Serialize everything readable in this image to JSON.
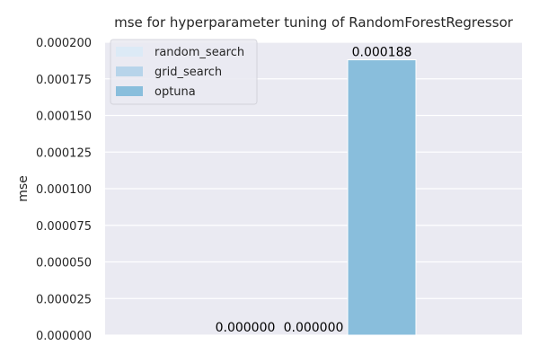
{
  "chart_data": {
    "type": "bar",
    "title": "mse for hyperparameter tuning of RandomForestRegressor",
    "xlabel": "",
    "ylabel": "mse",
    "ylim": [
      0,
      0.0002
    ],
    "yticks": [
      "0.000000",
      "0.000025",
      "0.000050",
      "0.000075",
      "0.000100",
      "0.000125",
      "0.000150",
      "0.000175",
      "0.000200"
    ],
    "grid": true,
    "legend_position": "top-left",
    "series": [
      {
        "name": "random_search",
        "value": 0.0,
        "label": "0.000000",
        "color": "#dceaf6"
      },
      {
        "name": "grid_search",
        "value": 0.0,
        "label": "0.000000",
        "color": "#b7d4ea"
      },
      {
        "name": "optuna",
        "value": 0.000188,
        "label": "0.000188",
        "color": "#89bedc"
      }
    ],
    "colors": {
      "plot_background": "#eaeaf2",
      "grid": "#ffffff",
      "text": "#000000"
    }
  }
}
